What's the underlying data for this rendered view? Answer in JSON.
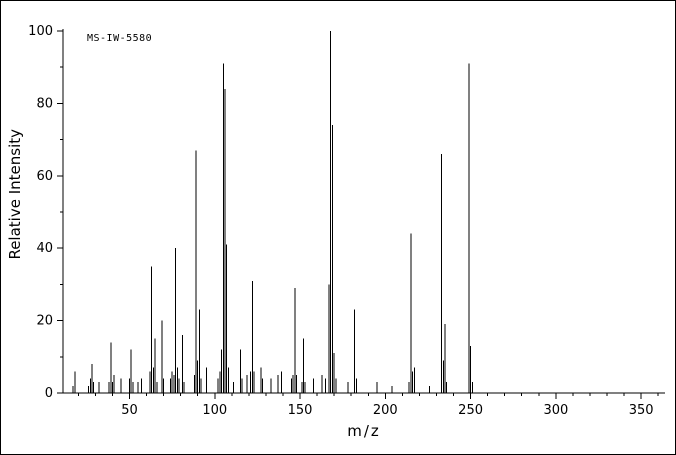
{
  "figure": {
    "background": "#ffffff",
    "border_color": "#000000"
  },
  "chart_data": {
    "type": "bar",
    "subtype": "mass-spectrum-stick-plot",
    "title": "",
    "annotation": "MS-IW-5580",
    "xlabel": "m/z",
    "ylabel": "Relative Intensity",
    "xlim": [
      11,
      364
    ],
    "ylim": [
      0,
      100
    ],
    "x_major_ticks": [
      50,
      100,
      150,
      200,
      250,
      300,
      350
    ],
    "x_minor_step": 10,
    "y_major_ticks": [
      0,
      20,
      40,
      60,
      80,
      100
    ],
    "y_minor_step": 10,
    "grid": false,
    "legend": false,
    "color": "#000000",
    "peaks": [
      [
        17,
        2
      ],
      [
        18,
        6
      ],
      [
        26,
        2
      ],
      [
        27,
        4
      ],
      [
        28,
        8
      ],
      [
        29,
        3
      ],
      [
        32,
        3
      ],
      [
        38,
        3
      ],
      [
        39,
        14
      ],
      [
        40,
        3
      ],
      [
        41,
        5
      ],
      [
        45,
        4
      ],
      [
        50,
        4
      ],
      [
        51,
        12
      ],
      [
        52,
        3
      ],
      [
        55,
        3
      ],
      [
        57,
        4
      ],
      [
        62,
        6
      ],
      [
        63,
        35
      ],
      [
        64,
        7
      ],
      [
        65,
        15
      ],
      [
        66,
        3
      ],
      [
        69,
        20
      ],
      [
        70,
        4
      ],
      [
        74,
        4
      ],
      [
        75,
        6
      ],
      [
        76,
        5
      ],
      [
        77,
        40
      ],
      [
        78,
        7
      ],
      [
        79,
        4
      ],
      [
        81,
        16
      ],
      [
        82,
        3
      ],
      [
        88,
        5
      ],
      [
        89,
        67
      ],
      [
        90,
        9
      ],
      [
        91,
        23
      ],
      [
        92,
        4
      ],
      [
        95,
        7
      ],
      [
        102,
        4
      ],
      [
        103,
        6
      ],
      [
        104,
        12
      ],
      [
        105,
        91
      ],
      [
        106,
        84
      ],
      [
        107,
        41
      ],
      [
        108,
        7
      ],
      [
        111,
        3
      ],
      [
        115,
        12
      ],
      [
        116,
        4
      ],
      [
        119,
        5
      ],
      [
        121,
        6
      ],
      [
        122,
        31
      ],
      [
        123,
        6
      ],
      [
        127,
        7
      ],
      [
        128,
        4
      ],
      [
        133,
        4
      ],
      [
        137,
        5
      ],
      [
        139,
        6
      ],
      [
        145,
        4
      ],
      [
        146,
        5
      ],
      [
        147,
        29
      ],
      [
        148,
        5
      ],
      [
        151,
        3
      ],
      [
        152,
        15
      ],
      [
        153,
        3
      ],
      [
        158,
        4
      ],
      [
        163,
        5
      ],
      [
        165,
        4
      ],
      [
        167,
        30
      ],
      [
        168,
        100
      ],
      [
        169,
        74
      ],
      [
        170,
        11
      ],
      [
        171,
        4
      ],
      [
        178,
        3
      ],
      [
        182,
        23
      ],
      [
        183,
        4
      ],
      [
        195,
        3
      ],
      [
        204,
        2
      ],
      [
        214,
        3
      ],
      [
        215,
        44
      ],
      [
        216,
        6
      ],
      [
        217,
        7
      ],
      [
        226,
        2
      ],
      [
        233,
        66
      ],
      [
        234,
        9
      ],
      [
        235,
        19
      ],
      [
        236,
        3
      ],
      [
        249,
        91
      ],
      [
        250,
        13
      ],
      [
        251,
        3
      ]
    ]
  }
}
